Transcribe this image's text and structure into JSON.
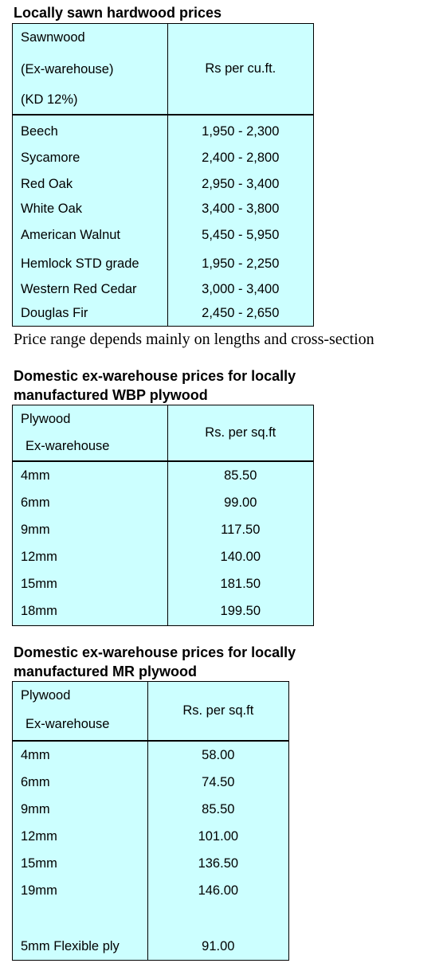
{
  "hardwood": {
    "title": "Locally sawn hardwood prices",
    "header": {
      "col1_lines": [
        "Sawnwood",
        "(Ex-warehouse)",
        "(KD 12%)"
      ],
      "col2": "Rs per cu.ft."
    },
    "rows": [
      {
        "name": "Beech",
        "price": "1,950 - 2,300"
      },
      {
        "name": "Sycamore",
        "price": "2,400 - 2,800"
      },
      {
        "name": "Red Oak",
        "price": "2,950 - 3,400"
      },
      {
        "name": "White Oak",
        "price": "3,400 - 3,800"
      },
      {
        "name": "American Walnut",
        "price": "5,450 - 5,950"
      },
      {
        "name": "Hemlock STD grade",
        "price": "1,950 - 2,250"
      },
      {
        "name": "Western Red Cedar",
        "price": "3,000 - 3,400"
      },
      {
        "name": "Douglas Fir",
        "price": "2,450 - 2,650"
      }
    ],
    "note": "Price range depends mainly on lengths and cross-section"
  },
  "wbp": {
    "title_lines": [
      "Domestic ex-warehouse prices for locally",
      "manufactured WBP plywood"
    ],
    "header": {
      "col1_lines": [
        "Plywood",
        "Ex-warehouse"
      ],
      "col2": "Rs. per sq.ft"
    },
    "rows": [
      {
        "name": "4mm",
        "price": "85.50"
      },
      {
        "name": "6mm",
        "price": "99.00"
      },
      {
        "name": "9mm",
        "price": "117.50"
      },
      {
        "name": "12mm",
        "price": "140.00"
      },
      {
        "name": "15mm",
        "price": "181.50"
      },
      {
        "name": "18mm",
        "price": "199.50"
      }
    ]
  },
  "mr": {
    "title_lines": [
      "Domestic ex-warehouse prices for locally",
      "manufactured MR plywood"
    ],
    "header": {
      "col1_lines": [
        "Plywood",
        "Ex-warehouse"
      ],
      "col2": "Rs. per sq.ft"
    },
    "rows": [
      {
        "name": "4mm",
        "price": "58.00"
      },
      {
        "name": "6mm",
        "price": "74.50"
      },
      {
        "name": "9mm",
        "price": "85.50"
      },
      {
        "name": "12mm",
        "price": "101.00"
      },
      {
        "name": "15mm",
        "price": "136.50"
      },
      {
        "name": "19mm",
        "price": "146.00"
      },
      {
        "name": "",
        "price": ""
      },
      {
        "name": "5mm Flexible ply",
        "price": "91.00"
      }
    ]
  },
  "colors": {
    "table_bg": "#ccffff",
    "border": "#000000"
  }
}
